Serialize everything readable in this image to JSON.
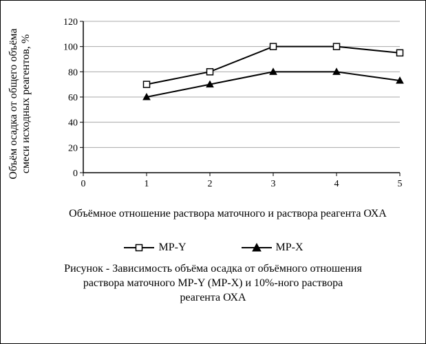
{
  "chart": {
    "type": "line",
    "background_color": "#ffffff",
    "grid_color": "#a8a8a8",
    "axis_color": "#000000",
    "tick_font_size": 14,
    "label_font_size": 16,
    "x": {
      "title": "Объёмное отношение раствора маточного и раствора реагента ОХА",
      "min": 0,
      "max": 5,
      "tick_step": 1,
      "ticks": [
        0,
        1,
        2,
        3,
        4,
        5
      ]
    },
    "y": {
      "title": "Объём осадка от общего объёма смеси исходных реагентов, %",
      "min": 0,
      "max": 120,
      "tick_step": 20,
      "ticks": [
        0,
        20,
        40,
        60,
        80,
        100,
        120
      ]
    },
    "series": [
      {
        "name": "MP-Y",
        "label": "МР-Y",
        "marker": "square-open",
        "marker_size": 9,
        "line_width": 2,
        "color": "#000000",
        "fill": "#ffffff",
        "x": [
          1,
          2,
          3,
          4,
          5
        ],
        "y": [
          70,
          80,
          100,
          100,
          95
        ]
      },
      {
        "name": "MP-X",
        "label": "МР-Х",
        "marker": "triangle-filled",
        "marker_size": 10,
        "line_width": 2,
        "color": "#000000",
        "fill": "#000000",
        "x": [
          1,
          2,
          3,
          4,
          5
        ],
        "y": [
          60,
          70,
          80,
          80,
          73
        ]
      }
    ]
  },
  "legend": {
    "items": [
      {
        "prefix": "—□—",
        "label": "МР-Y"
      },
      {
        "prefix": "—▲—",
        "label": "МР-Х"
      }
    ]
  },
  "caption": {
    "line1": "Рисунок - Зависимость объёма осадка от объёмного отношения",
    "line2": "раствора маточного МР-Y (МР-Х) и 10%-ного раствора",
    "line3": "реагента ОХА"
  }
}
